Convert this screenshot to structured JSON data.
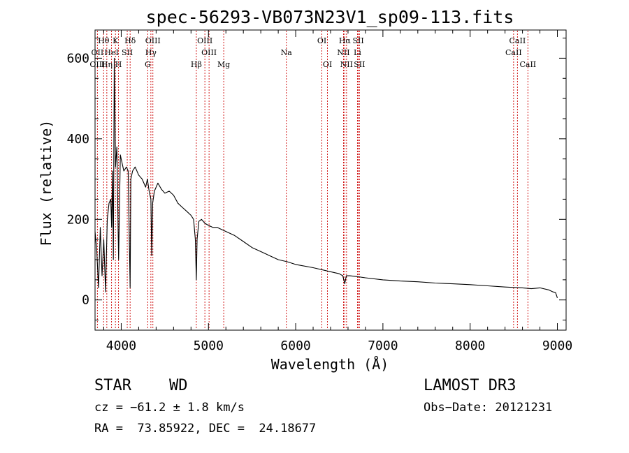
{
  "chart_data": {
    "type": "line",
    "title": "spec-56293-VB073N23V1_sp09-113.fits",
    "xlabel": "Wavelength (Å)",
    "ylabel": "Flux (relative)",
    "xlim": [
      3700,
      9100
    ],
    "ylim": [
      -75,
      670
    ],
    "xticks": [
      4000,
      5000,
      6000,
      7000,
      8000,
      9000
    ],
    "yticks": [
      0,
      200,
      400,
      600
    ],
    "series": [
      {
        "name": "spectrum",
        "x": [
          3700,
          3720,
          3740,
          3760,
          3780,
          3800,
          3820,
          3840,
          3860,
          3880,
          3890,
          3900,
          3910,
          3920,
          3935,
          3950,
          3970,
          3990,
          4000,
          4030,
          4060,
          4080,
          4102,
          4110,
          4130,
          4160,
          4200,
          4240,
          4280,
          4300,
          4320,
          4340,
          4350,
          4360,
          4380,
          4420,
          4460,
          4500,
          4550,
          4600,
          4650,
          4700,
          4750,
          4800,
          4830,
          4850,
          4861,
          4870,
          4890,
          4920,
          4960,
          5000,
          5050,
          5100,
          5150,
          5200,
          5300,
          5400,
          5500,
          5600,
          5700,
          5800,
          5900,
          6000,
          6200,
          6400,
          6500,
          6540,
          6563,
          6580,
          6620,
          6700,
          6800,
          7000,
          7200,
          7400,
          7600,
          7800,
          8000,
          8200,
          8400,
          8500,
          8600,
          8700,
          8800,
          8900,
          8950,
          8980,
          9000
        ],
        "y": [
          170,
          120,
          30,
          180,
          60,
          150,
          20,
          200,
          240,
          250,
          180,
          320,
          100,
          600,
          330,
          380,
          100,
          360,
          350,
          320,
          330,
          320,
          30,
          300,
          320,
          330,
          310,
          300,
          280,
          300,
          270,
          250,
          110,
          240,
          270,
          290,
          275,
          265,
          270,
          260,
          240,
          230,
          220,
          210,
          200,
          150,
          50,
          150,
          195,
          200,
          190,
          185,
          180,
          180,
          175,
          170,
          160,
          145,
          130,
          120,
          110,
          100,
          95,
          88,
          80,
          70,
          65,
          60,
          40,
          60,
          60,
          58,
          55,
          50,
          47,
          45,
          42,
          40,
          38,
          35,
          32,
          31,
          30,
          28,
          30,
          25,
          20,
          18,
          5
        ]
      }
    ],
    "lines": [
      {
        "name": "Hθ",
        "wl": 3798,
        "row": 1
      },
      {
        "name": "OII",
        "wl": 3727,
        "row": 2
      },
      {
        "name": "OIII",
        "wl": 3727,
        "row": 3
      },
      {
        "name": "Hη",
        "wl": 3835,
        "row": 3
      },
      {
        "name": "K",
        "wl": 3934,
        "row": 1
      },
      {
        "name": "HeI",
        "wl": 3889,
        "row": 2
      },
      {
        "name": "SII",
        "wl": 4069,
        "row": 2
      },
      {
        "name": "H",
        "wl": 3969,
        "row": 3
      },
      {
        "name": "Hδ",
        "wl": 4102,
        "row": 1
      },
      {
        "name": "OIII",
        "wl": 4363,
        "row": 1
      },
      {
        "name": "Hγ",
        "wl": 4340,
        "row": 2
      },
      {
        "name": "G",
        "wl": 4304,
        "row": 3
      },
      {
        "name": "Hβ",
        "wl": 4861,
        "row": 3
      },
      {
        "name": "OIII",
        "wl": 4959,
        "row": 1
      },
      {
        "name": "OIII",
        "wl": 5007,
        "row": 2
      },
      {
        "name": "Mg",
        "wl": 5175,
        "row": 3
      },
      {
        "name": "Na",
        "wl": 5893,
        "row": 2
      },
      {
        "name": "OI",
        "wl": 6300,
        "row": 1
      },
      {
        "name": "OI",
        "wl": 6364,
        "row": 3
      },
      {
        "name": "Hα",
        "wl": 6563,
        "row": 1
      },
      {
        "name": "SII",
        "wl": 6717,
        "row": 1
      },
      {
        "name": "NII",
        "wl": 6548,
        "row": 2
      },
      {
        "name": "Li",
        "wl": 6708,
        "row": 2
      },
      {
        "name": "NII",
        "wl": 6583,
        "row": 3
      },
      {
        "name": "SII",
        "wl": 6731,
        "row": 3
      },
      {
        "name": "CaII",
        "wl": 8542,
        "row": 1
      },
      {
        "name": "CaII",
        "wl": 8498,
        "row": 2
      },
      {
        "name": "CaII",
        "wl": 8662,
        "row": 3
      }
    ]
  },
  "info": {
    "class": "STAR",
    "subclass": "WD",
    "survey": "LAMOST DR3",
    "cz": "cz = −61.2 ± 1.8 km/s",
    "obs_date": "Obs−Date: 20121231",
    "radec": "RA =  73.85922, DEC =  24.18677"
  },
  "colors": {
    "axis": "#000000",
    "spectrum": "#000000",
    "line_marker": "#cc0000"
  }
}
